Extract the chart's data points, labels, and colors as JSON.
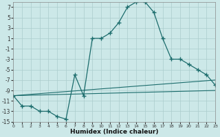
{
  "xlabel": "Humidex (Indice chaleur)",
  "bg_color": "#cce8e8",
  "grid_color": "#aacccc",
  "line_color": "#1a6b6b",
  "xlim": [
    0,
    23
  ],
  "ylim": [
    -15,
    8
  ],
  "xticks": [
    0,
    1,
    2,
    3,
    4,
    5,
    6,
    7,
    8,
    9,
    10,
    11,
    12,
    13,
    14,
    15,
    16,
    17,
    18,
    19,
    20,
    21,
    22,
    23
  ],
  "yticks": [
    -15,
    -13,
    -11,
    -9,
    -7,
    -5,
    -3,
    -1,
    1,
    3,
    5,
    7
  ],
  "main_x": [
    0,
    1,
    2,
    3,
    4,
    5,
    6,
    7,
    8,
    9,
    10,
    11,
    12,
    13,
    14,
    15,
    16,
    17,
    18,
    19,
    20,
    21,
    22,
    23
  ],
  "main_y": [
    -10,
    -12,
    -12,
    -13,
    -13,
    -14,
    -14.5,
    -6,
    -10,
    1,
    1,
    2,
    4,
    7,
    8,
    8,
    6,
    1,
    -3,
    -3,
    -4,
    -5,
    -6,
    -8
  ],
  "line2_x": [
    0,
    23
  ],
  "line2_y": [
    -10,
    -7
  ],
  "line3_x": [
    0,
    23
  ],
  "line3_y": [
    -10,
    -9
  ]
}
